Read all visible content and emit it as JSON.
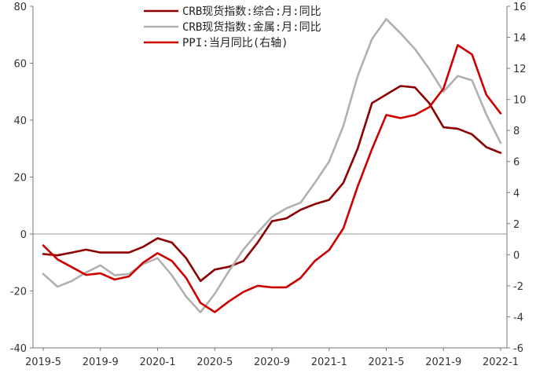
{
  "chart_data": {
    "type": "line",
    "x": [
      "2019-5",
      "2019-6",
      "2019-7",
      "2019-8",
      "2019-9",
      "2019-10",
      "2019-11",
      "2019-12",
      "2020-1",
      "2020-2",
      "2020-3",
      "2020-4",
      "2020-5",
      "2020-6",
      "2020-7",
      "2020-8",
      "2020-9",
      "2020-10",
      "2020-11",
      "2020-12",
      "2021-1",
      "2021-2",
      "2021-3",
      "2021-4",
      "2021-5",
      "2021-6",
      "2021-7",
      "2021-8",
      "2021-9",
      "2021-10",
      "2021-11",
      "2021-12",
      "2022-1"
    ],
    "x_tick_labels": [
      "2019-5",
      "2019-9",
      "2020-1",
      "2020-5",
      "2020-9",
      "2021-1",
      "2021-5",
      "2021-9",
      "2022-1"
    ],
    "left_axis": {
      "ylim": [
        -40,
        80
      ],
      "ticks": [
        "80",
        "60",
        "40",
        "20",
        "0",
        "-20",
        "-40"
      ]
    },
    "right_axis": {
      "ylim": [
        -6,
        16
      ],
      "ticks": [
        "16",
        "14",
        "12",
        "10",
        "8",
        "6",
        "4",
        "2",
        "0",
        "-2",
        "-4",
        "-6"
      ]
    },
    "legend_position": "top-center",
    "series": [
      {
        "name": "CRB现货指数:综合:月:同比",
        "axis": "left",
        "color": "#8b0000",
        "values": [
          -7,
          -7.5,
          -6.5,
          -5.5,
          -6.5,
          -6.5,
          -6.5,
          -4.5,
          -1.5,
          -3,
          -8.5,
          -16.5,
          -12.5,
          -11.5,
          -9.5,
          -3,
          4.5,
          5.5,
          8.5,
          10.5,
          12,
          18,
          30,
          46,
          49,
          52,
          51.5,
          46,
          37.5,
          37,
          35,
          30.5,
          28.5
        ]
      },
      {
        "name": "CRB现货指数:金属:月:同比",
        "axis": "left",
        "color": "#b0b0b0",
        "values": [
          -14,
          -18.5,
          -16.5,
          -13.5,
          -11,
          -14.5,
          -14,
          -10.5,
          -8.5,
          -14.5,
          -22,
          -27.5,
          -21,
          -13,
          -5.5,
          0.5,
          6,
          9,
          11,
          18,
          25.5,
          38,
          55.5,
          68.5,
          75.5,
          70.5,
          65,
          58,
          50,
          55.5,
          54,
          42,
          32
        ]
      },
      {
        "name": "PPI:当月同比(右轴)",
        "axis": "right",
        "color": "#cc0000",
        "values": [
          0.6,
          -0.3,
          -0.8,
          -1.3,
          -1.2,
          -1.6,
          -1.4,
          -0.5,
          0.1,
          -0.4,
          -1.5,
          -3.1,
          -3.7,
          -3.0,
          -2.4,
          -2.0,
          -2.1,
          -2.1,
          -1.5,
          -0.4,
          0.3,
          1.7,
          4.4,
          6.8,
          9.0,
          8.8,
          9.0,
          9.5,
          10.7,
          13.5,
          12.9,
          10.3,
          9.1
        ]
      }
    ]
  }
}
